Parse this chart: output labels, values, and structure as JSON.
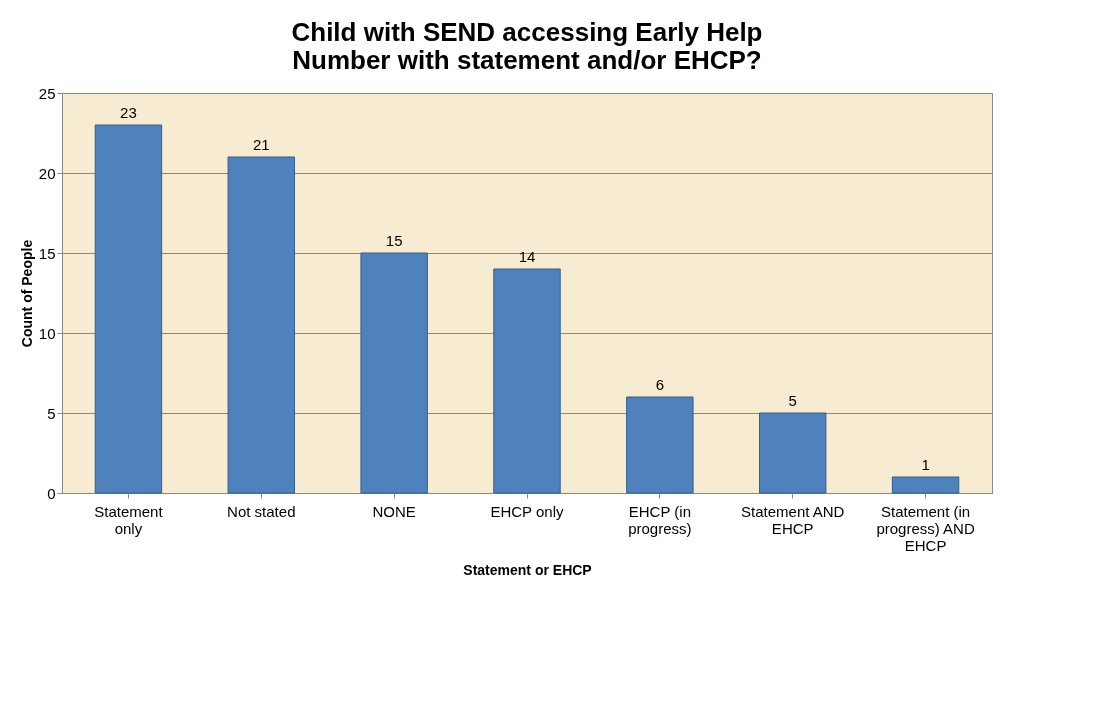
{
  "chart_data": {
    "type": "bar",
    "title": "Child with SEND accessing Early Help Number with statement and/or EHCP?",
    "xlabel": "Statement or EHCP",
    "ylabel": "Count of People",
    "categories": [
      "Statement only",
      "Not stated",
      "NONE",
      "EHCP only",
      "EHCP (in progress)",
      "Statement AND EHCP",
      "Statement (in progress) AND EHCP"
    ],
    "values": [
      23,
      21,
      15,
      14,
      6,
      5,
      1
    ],
    "color": "#4f81bd",
    "ylim": [
      0,
      25
    ],
    "yticks": [
      0,
      5,
      10,
      15,
      20,
      25
    ],
    "grid": "y",
    "data_labels": true
  }
}
